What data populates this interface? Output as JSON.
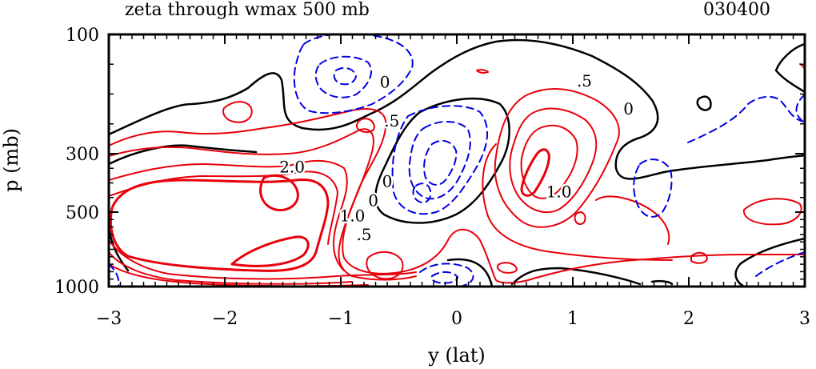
{
  "chart_data": {
    "type": "contour",
    "title": "zeta through wmax 500 mb",
    "time_label": "030400",
    "xlabel": "y (lat)",
    "ylabel": "p (mb)",
    "xlim": [
      -3,
      3
    ],
    "x_ticks": [
      -3,
      -2,
      -1,
      0,
      1,
      2,
      3
    ],
    "x_tick_labels": [
      "−3",
      "−2",
      "−1",
      "0",
      "1",
      "2",
      "3"
    ],
    "y_ticks": [
      100,
      300,
      500,
      1000
    ],
    "y_tick_labels": [
      "100",
      "300",
      "500",
      "1000"
    ],
    "colors": {
      "positive": "#e8000b",
      "zero": "#000000",
      "negative": "#0000e0"
    },
    "contour_labels": [
      {
        "text": "2.0",
        "y": -1.42,
        "p": 345
      },
      {
        "text": "1.0",
        "y": -0.9,
        "p": 525
      },
      {
        "text": ".5",
        "y": -0.8,
        "p": 650
      },
      {
        "text": "0",
        "y": -0.72,
        "p": 460
      },
      {
        "text": ".5",
        "y": -0.56,
        "p": 245
      },
      {
        "text": "0",
        "y": -0.62,
        "p": 180
      },
      {
        "text": "0",
        "y": -0.6,
        "p": 395
      },
      {
        "text": ".5",
        "y": 1.1,
        "p": 178
      },
      {
        "text": "0",
        "y": 1.48,
        "p": 225
      },
      {
        "text": "1.0",
        "y": 0.88,
        "p": 430
      }
    ]
  }
}
